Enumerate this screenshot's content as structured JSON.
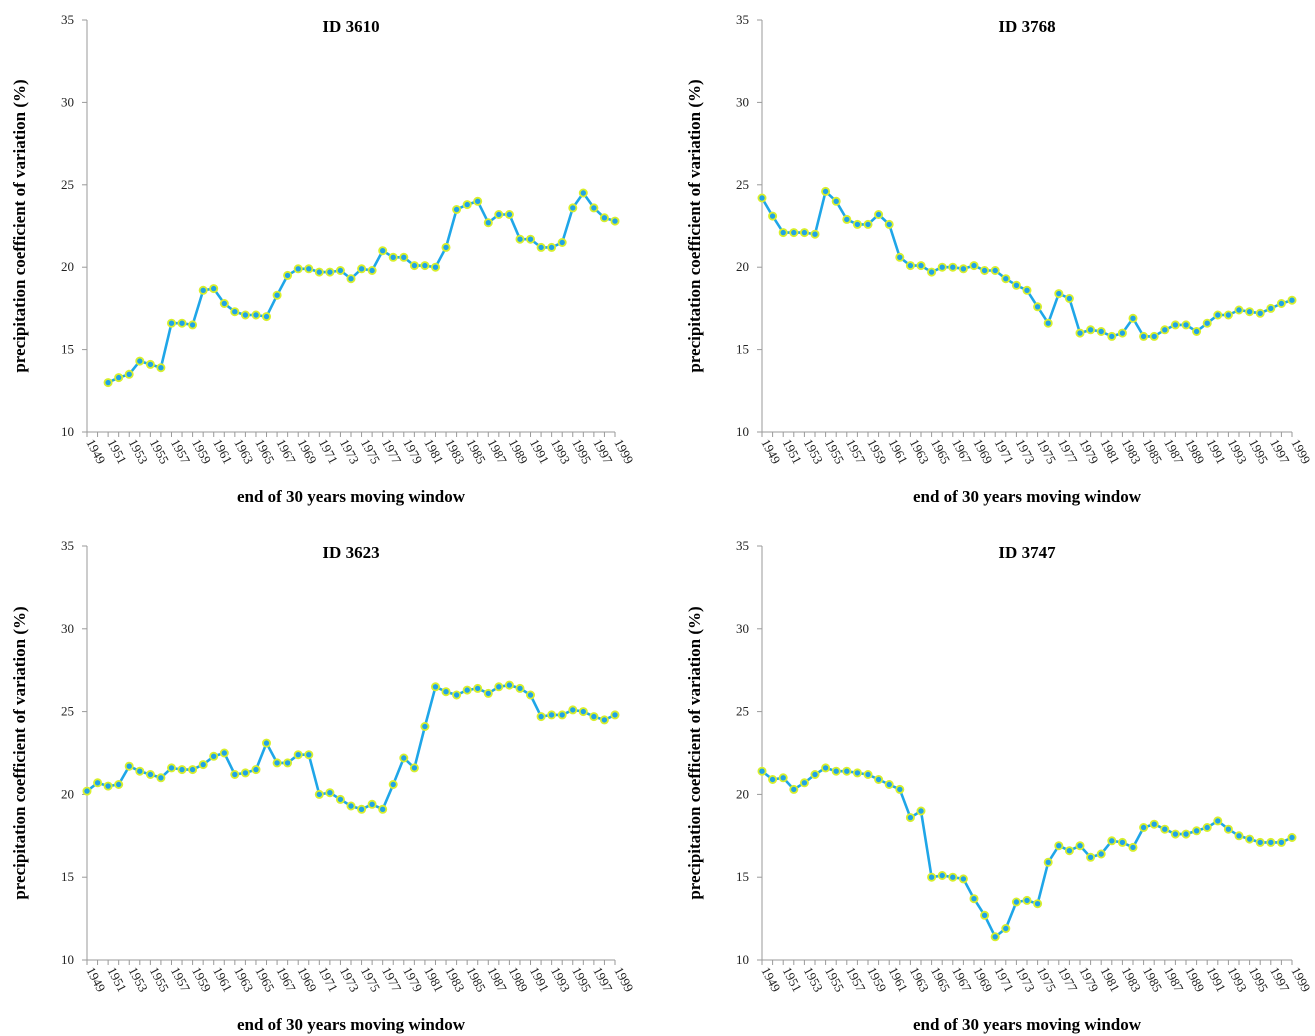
{
  "colors": {
    "line": "#1fa6e8",
    "marker_fill": "#20a3e6",
    "marker_edge": "#d8ef2c",
    "axis": "#9a9a9a"
  },
  "chart_data": [
    {
      "type": "line",
      "title": "ID 3610",
      "xlabel": "end of 30 years moving window",
      "ylabel": "precipitation coefficient of variation (%)",
      "ylim": [
        10,
        35
      ],
      "yticks": [
        10,
        15,
        20,
        25,
        30,
        35
      ],
      "x_tick_labels": [
        "1949",
        "1951",
        "1953",
        "1955",
        "1957",
        "1959",
        "1961",
        "1963",
        "1965",
        "1967",
        "1969",
        "1971",
        "1973",
        "1975",
        "1977",
        "1979",
        "1981",
        "1983",
        "1985",
        "1987",
        "1989",
        "1991",
        "1993",
        "1995",
        "1997",
        "1999"
      ],
      "x": [
        1949,
        1950,
        1951,
        1952,
        1953,
        1954,
        1955,
        1956,
        1957,
        1958,
        1959,
        1960,
        1961,
        1962,
        1963,
        1964,
        1965,
        1966,
        1967,
        1968,
        1969,
        1970,
        1971,
        1972,
        1973,
        1974,
        1975,
        1976,
        1977,
        1978,
        1979,
        1980,
        1981,
        1982,
        1983,
        1984,
        1985,
        1986,
        1987,
        1988,
        1989,
        1990,
        1991,
        1992,
        1993,
        1994,
        1995,
        1996,
        1997,
        1998,
        1999
      ],
      "series": [
        {
          "values": [
            null,
            null,
            13.0,
            13.3,
            13.5,
            14.3,
            14.1,
            13.9,
            16.6,
            16.6,
            16.5,
            18.6,
            18.7,
            17.8,
            17.3,
            17.1,
            17.1,
            17.0,
            18.3,
            19.5,
            19.9,
            19.9,
            19.7,
            19.7,
            19.8,
            19.3,
            19.9,
            19.8,
            21.0,
            20.6,
            20.6,
            20.1,
            20.1,
            20.0,
            21.2,
            23.5,
            23.8,
            24.0,
            22.7,
            23.2,
            23.2,
            21.7,
            21.7,
            21.2,
            21.2,
            21.5,
            23.6,
            24.5,
            23.6,
            23.0,
            22.8
          ]
        }
      ]
    },
    {
      "type": "line",
      "title": "ID 3768",
      "xlabel": "end of 30 years moving window",
      "ylabel": "precipitation coefficient of variation (%)",
      "ylim": [
        10,
        35
      ],
      "yticks": [
        10,
        15,
        20,
        25,
        30,
        35
      ],
      "x_tick_labels": [
        "1949",
        "1951",
        "1953",
        "1955",
        "1957",
        "1959",
        "1961",
        "1963",
        "1965",
        "1967",
        "1969",
        "1971",
        "1973",
        "1975",
        "1977",
        "1979",
        "1981",
        "1983",
        "1985",
        "1987",
        "1989",
        "1991",
        "1993",
        "1995",
        "1997",
        "1999"
      ],
      "x": [
        1949,
        1950,
        1951,
        1952,
        1953,
        1954,
        1955,
        1956,
        1957,
        1958,
        1959,
        1960,
        1961,
        1962,
        1963,
        1964,
        1965,
        1966,
        1967,
        1968,
        1969,
        1970,
        1971,
        1972,
        1973,
        1974,
        1975,
        1976,
        1977,
        1978,
        1979,
        1980,
        1981,
        1982,
        1983,
        1984,
        1985,
        1986,
        1987,
        1988,
        1989,
        1990,
        1991,
        1992,
        1993,
        1994,
        1995,
        1996,
        1997,
        1998,
        1999
      ],
      "series": [
        {
          "values": [
            24.2,
            23.1,
            22.1,
            22.1,
            22.1,
            22.0,
            24.6,
            24.0,
            22.9,
            22.6,
            22.6,
            23.2,
            22.6,
            20.6,
            20.1,
            20.1,
            19.7,
            20.0,
            20.0,
            19.9,
            20.1,
            19.8,
            19.8,
            19.3,
            18.9,
            18.6,
            17.6,
            16.6,
            18.4,
            18.1,
            16.0,
            16.2,
            16.1,
            15.8,
            16.0,
            16.9,
            15.8,
            15.8,
            16.2,
            16.5,
            16.5,
            16.1,
            16.6,
            17.1,
            17.1,
            17.4,
            17.3,
            17.2,
            17.5,
            17.8,
            18.0
          ]
        }
      ]
    },
    {
      "type": "line",
      "title": "ID 3623",
      "xlabel": "end of 30 years moving window",
      "ylabel": "precipitation coefficient of variation (%)",
      "ylim": [
        10,
        35
      ],
      "yticks": [
        10,
        15,
        20,
        25,
        30,
        35
      ],
      "x_tick_labels": [
        "1949",
        "1951",
        "1953",
        "1955",
        "1957",
        "1959",
        "1961",
        "1963",
        "1965",
        "1967",
        "1969",
        "1971",
        "1973",
        "1975",
        "1977",
        "1979",
        "1981",
        "1983",
        "1985",
        "1987",
        "1989",
        "1991",
        "1993",
        "1995",
        "1997",
        "1999"
      ],
      "x": [
        1949,
        1950,
        1951,
        1952,
        1953,
        1954,
        1955,
        1956,
        1957,
        1958,
        1959,
        1960,
        1961,
        1962,
        1963,
        1964,
        1965,
        1966,
        1967,
        1968,
        1969,
        1970,
        1971,
        1972,
        1973,
        1974,
        1975,
        1976,
        1977,
        1978,
        1979,
        1980,
        1981,
        1982,
        1983,
        1984,
        1985,
        1986,
        1987,
        1988,
        1989,
        1990,
        1991,
        1992,
        1993,
        1994,
        1995,
        1996,
        1997,
        1998,
        1999
      ],
      "series": [
        {
          "values": [
            20.2,
            20.7,
            20.5,
            20.6,
            21.7,
            21.4,
            21.2,
            21.0,
            21.6,
            21.5,
            21.5,
            21.8,
            22.3,
            22.5,
            21.2,
            21.3,
            21.5,
            23.1,
            21.9,
            21.9,
            22.4,
            22.4,
            20.0,
            20.1,
            19.7,
            19.3,
            19.1,
            19.4,
            19.1,
            20.6,
            22.2,
            21.6,
            24.1,
            26.5,
            26.2,
            26.0,
            26.3,
            26.4,
            26.1,
            26.5,
            26.6,
            26.4,
            26.0,
            24.7,
            24.8,
            24.8,
            25.1,
            25.0,
            24.7,
            24.5,
            24.8
          ]
        }
      ]
    },
    {
      "type": "line",
      "title": "ID 3747",
      "xlabel": "end of 30 years moving window",
      "ylabel": "precipitation coefficient of variation (%)",
      "ylim": [
        10,
        35
      ],
      "yticks": [
        10,
        15,
        20,
        25,
        30,
        35
      ],
      "x_tick_labels": [
        "1949",
        "1951",
        "1953",
        "1955",
        "1957",
        "1959",
        "1961",
        "1963",
        "1965",
        "1967",
        "1969",
        "1971",
        "1973",
        "1975",
        "1977",
        "1979",
        "1981",
        "1983",
        "1985",
        "1987",
        "1989",
        "1991",
        "1993",
        "1995",
        "1997",
        "1999"
      ],
      "x": [
        1949,
        1950,
        1951,
        1952,
        1953,
        1954,
        1955,
        1956,
        1957,
        1958,
        1959,
        1960,
        1961,
        1962,
        1963,
        1964,
        1965,
        1966,
        1967,
        1968,
        1969,
        1970,
        1971,
        1972,
        1973,
        1974,
        1975,
        1976,
        1977,
        1978,
        1979,
        1980,
        1981,
        1982,
        1983,
        1984,
        1985,
        1986,
        1987,
        1988,
        1989,
        1990,
        1991,
        1992,
        1993,
        1994,
        1995,
        1996,
        1997,
        1998,
        1999
      ],
      "series": [
        {
          "values": [
            21.4,
            20.9,
            21.0,
            20.3,
            20.7,
            21.2,
            21.6,
            21.4,
            21.4,
            21.3,
            21.2,
            20.9,
            20.6,
            20.3,
            18.6,
            19.0,
            15.0,
            15.1,
            15.0,
            14.9,
            13.7,
            12.7,
            11.4,
            11.9,
            13.5,
            13.6,
            13.4,
            15.9,
            16.9,
            16.6,
            16.9,
            16.2,
            16.4,
            17.2,
            17.1,
            16.8,
            18.0,
            18.2,
            17.9,
            17.6,
            17.6,
            17.8,
            18.0,
            18.4,
            17.9,
            17.5,
            17.3,
            17.1,
            17.1,
            17.1,
            17.4
          ]
        }
      ]
    }
  ]
}
